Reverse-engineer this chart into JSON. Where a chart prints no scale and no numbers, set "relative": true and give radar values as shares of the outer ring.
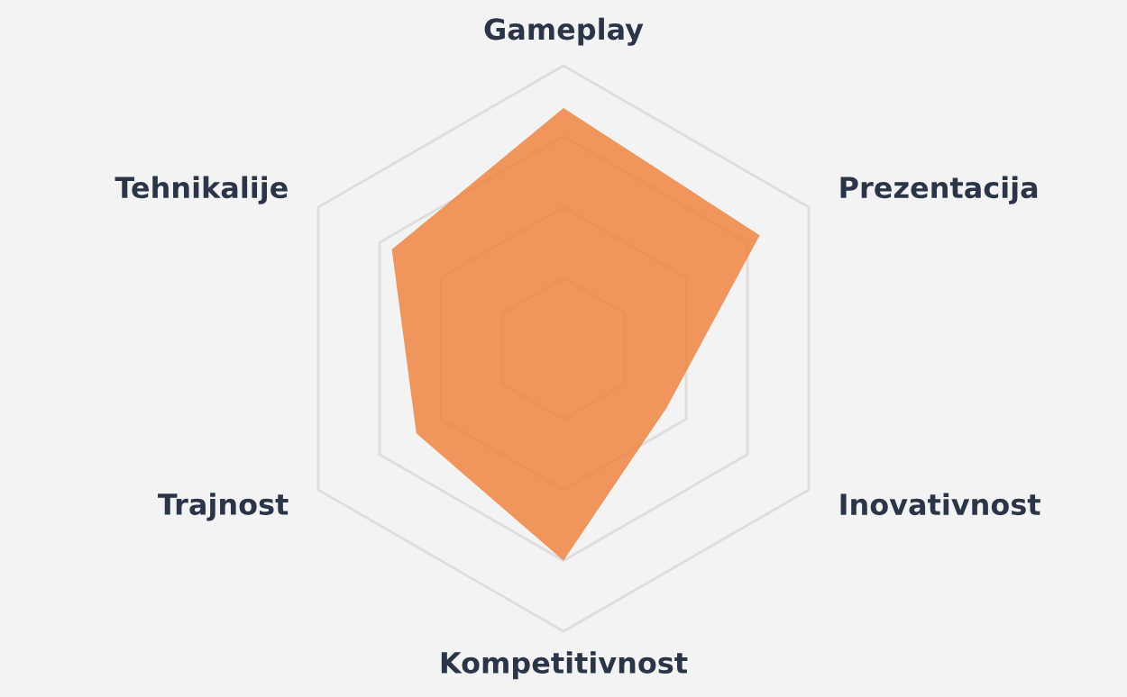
{
  "chart_data": {
    "type": "radar",
    "relative": true,
    "grid": true,
    "legend": false,
    "categories": [
      "Gameplay",
      "Prezentacija",
      "Inovativnost",
      "Kompetitivnost",
      "Trajnost",
      "Tehnikalije"
    ],
    "series": [
      {
        "color": "#ee8440",
        "values": [
          0.85,
          0.8,
          0.42,
          0.75,
          0.6,
          0.7
        ]
      }
    ]
  }
}
